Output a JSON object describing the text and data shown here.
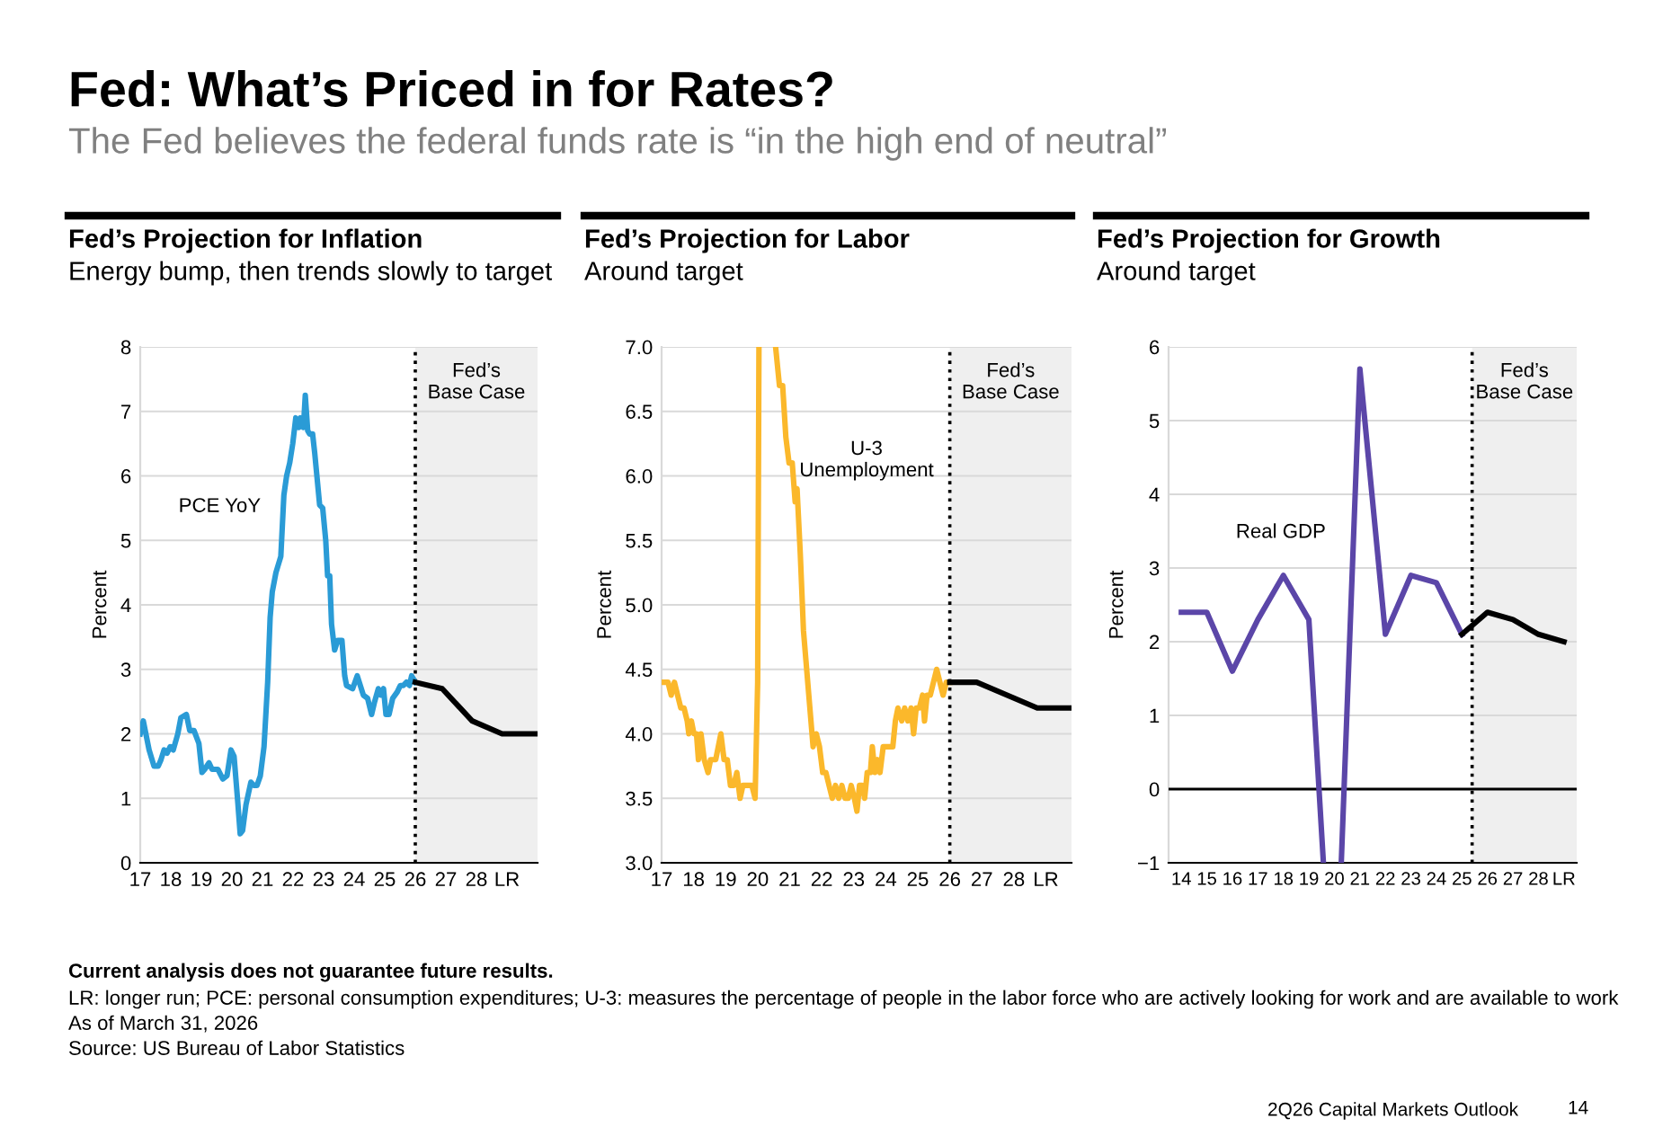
{
  "chart_data": [
    {
      "type": "other",
      "title": "Fed: What’s Priced in for Rates?",
      "subtitle": "The Fed believes the federal funds rate is “in the high end of neutral”",
      "annotations": [
        "Current analysis does not guarantee future results.",
        "LR: longer run; PCE: personal consumption expenditures; U-3: measures the percentage of people in the labor force who are actively looking for work and are available to work",
        "As of March 31, 2026",
        "Source: US Bureau of Labor Statistics",
        "2Q26 Capital Markets Outlook",
        "14"
      ]
    },
    {
      "type": "line",
      "title": "Fed’s Projection for Inflation",
      "subtitle": "Energy bump, then trends slowly to target",
      "ylabel": "Percent",
      "xlim": [
        2017,
        2030
      ],
      "ylim": [
        0,
        8
      ],
      "yticks": [
        0,
        1,
        2,
        3,
        4,
        5,
        6,
        7,
        8
      ],
      "xticks": [
        {
          "value": 2017,
          "label": "17"
        },
        {
          "value": 2018,
          "label": "18"
        },
        {
          "value": 2019,
          "label": "19"
        },
        {
          "value": 2020,
          "label": "20"
        },
        {
          "value": 2021,
          "label": "21"
        },
        {
          "value": 2022,
          "label": "22"
        },
        {
          "value": 2023,
          "label": "23"
        },
        {
          "value": 2024,
          "label": "24"
        },
        {
          "value": 2025,
          "label": "25"
        },
        {
          "value": 2026,
          "label": "26"
        },
        {
          "value": 2027,
          "label": "27"
        },
        {
          "value": 2028,
          "label": "28"
        },
        {
          "value": 2029,
          "label": "LR"
        }
      ],
      "grid": "y",
      "line_style": "solid",
      "marker": "none",
      "series": [
        {
          "name": "PCE YoY",
          "color": "#2a9bd6",
          "x": [
            2017.0,
            2017.1,
            2017.29,
            2017.45,
            2017.59,
            2017.68,
            2017.78,
            2017.88,
            2017.98,
            2018.08,
            2018.23,
            2018.33,
            2018.51,
            2018.62,
            2018.76,
            2018.92,
            2019.02,
            2019.11,
            2019.25,
            2019.35,
            2019.54,
            2019.7,
            2019.84,
            2019.97,
            2020.07,
            2020.19,
            2020.27,
            2020.35,
            2020.46,
            2020.62,
            2020.72,
            2020.82,
            2020.93,
            2021.05,
            2021.17,
            2021.25,
            2021.32,
            2021.44,
            2021.6,
            2021.7,
            2021.79,
            2021.89,
            2021.99,
            2022.09,
            2022.19,
            2022.24,
            2022.34,
            2022.4,
            2022.48,
            2022.54,
            2022.64,
            2022.71,
            2022.77,
            2022.87,
            2022.97,
            2023.07,
            2023.13,
            2023.2,
            2023.26,
            2023.36,
            2023.46,
            2023.6,
            2023.69,
            2023.75,
            2023.95,
            2024.1,
            2024.2,
            2024.3,
            2024.44,
            2024.57,
            2024.67,
            2024.79,
            2024.87,
            2024.96,
            2025.04,
            2025.14,
            2025.26,
            2025.41,
            2025.51,
            2025.61,
            2025.71,
            2025.81,
            2025.88,
            2026.0
          ],
          "values": [
            2.0,
            2.2,
            1.75,
            1.5,
            1.5,
            1.6,
            1.75,
            1.7,
            1.8,
            1.75,
            2.0,
            2.25,
            2.3,
            2.05,
            2.05,
            1.85,
            1.4,
            1.45,
            1.55,
            1.45,
            1.45,
            1.3,
            1.35,
            1.75,
            1.65,
            0.95,
            0.45,
            0.5,
            0.9,
            1.25,
            1.2,
            1.2,
            1.35,
            1.8,
            2.8,
            3.8,
            4.2,
            4.5,
            4.75,
            5.7,
            6.0,
            6.2,
            6.5,
            6.9,
            6.75,
            6.9,
            6.75,
            7.25,
            6.7,
            6.65,
            6.65,
            6.35,
            6.05,
            5.55,
            5.5,
            5.0,
            4.45,
            4.45,
            3.7,
            3.3,
            3.45,
            3.45,
            2.9,
            2.75,
            2.7,
            2.9,
            2.75,
            2.6,
            2.55,
            2.3,
            2.5,
            2.7,
            2.6,
            2.7,
            2.3,
            2.3,
            2.55,
            2.65,
            2.75,
            2.75,
            2.8,
            2.75,
            2.9,
            2.8
          ]
        },
        {
          "color": "#000000",
          "x": [
            2026.0,
            2026.88,
            2027.86,
            2028.84,
            2030.0
          ],
          "values": [
            2.8,
            2.7,
            2.2,
            2.0,
            2.0
          ]
        }
      ],
      "ref_lines": [
        {
          "axis": "x",
          "value": 2026,
          "color": "#000000",
          "line_style": "dotted"
        }
      ],
      "bands": [
        {
          "axis": "x",
          "from": 2026,
          "to": 2030,
          "label": "Fed’s\nBase Case",
          "color": "#efefef"
        }
      ]
    },
    {
      "type": "line",
      "title": "Fed’s Projection for Labor",
      "subtitle": "Around target",
      "ylabel": "Percent",
      "xlim": [
        2017,
        2029.8
      ],
      "ylim": [
        3.0,
        7.0
      ],
      "yticks": [
        {
          "value": 3.0,
          "label": "3.0"
        },
        {
          "value": 3.5,
          "label": "3.5"
        },
        {
          "value": 4.0,
          "label": "4.0"
        },
        {
          "value": 4.5,
          "label": "4.5"
        },
        {
          "value": 5.0,
          "label": "5.0"
        },
        {
          "value": 5.5,
          "label": "5.5"
        },
        {
          "value": 6.0,
          "label": "6.0"
        },
        {
          "value": 6.5,
          "label": "6.5"
        },
        {
          "value": 7.0,
          "label": "7.0"
        }
      ],
      "xticks": [
        {
          "value": 2017,
          "label": "17"
        },
        {
          "value": 2018,
          "label": "18"
        },
        {
          "value": 2019,
          "label": "19"
        },
        {
          "value": 2020,
          "label": "20"
        },
        {
          "value": 2021,
          "label": "21"
        },
        {
          "value": 2022,
          "label": "22"
        },
        {
          "value": 2023,
          "label": "23"
        },
        {
          "value": 2024,
          "label": "24"
        },
        {
          "value": 2025,
          "label": "25"
        },
        {
          "value": 2026,
          "label": "26"
        },
        {
          "value": 2027,
          "label": "27"
        },
        {
          "value": 2028,
          "label": "28"
        },
        {
          "value": 2029,
          "label": "LR"
        }
      ],
      "grid": "y",
      "line_style": "solid",
      "marker": "none",
      "series": [
        {
          "name": "U-3\nUnemployment",
          "color": "#fbb82b",
          "x": [
            2017.0,
            2017.2,
            2017.3,
            2017.4,
            2017.5,
            2017.6,
            2017.7,
            2017.8,
            2017.85,
            2017.93,
            2018.01,
            2018.09,
            2018.15,
            2018.23,
            2018.33,
            2018.45,
            2018.53,
            2018.69,
            2018.85,
            2018.95,
            2019.05,
            2019.15,
            2019.25,
            2019.35,
            2019.45,
            2019.54,
            2019.68,
            2019.82,
            2019.92,
            2020.0,
            2020.04,
            2020.3,
            2020.56,
            2020.68,
            2020.78,
            2020.88,
            2020.98,
            2021.08,
            2021.17,
            2021.23,
            2021.33,
            2021.43,
            2021.53,
            2021.63,
            2021.73,
            2021.83,
            2021.93,
            2022.03,
            2022.13,
            2022.23,
            2022.33,
            2022.43,
            2022.53,
            2022.63,
            2022.73,
            2022.83,
            2022.92,
            2023.02,
            2023.1,
            2023.18,
            2023.26,
            2023.34,
            2023.42,
            2023.52,
            2023.58,
            2023.66,
            2023.74,
            2023.82,
            2023.92,
            2024.06,
            2024.22,
            2024.3,
            2024.38,
            2024.5,
            2024.59,
            2024.69,
            2024.79,
            2024.87,
            2024.95,
            2025.05,
            2025.15,
            2025.21,
            2025.29,
            2025.39,
            2025.49,
            2025.59,
            2025.69,
            2025.79,
            2025.89,
            2026.0
          ],
          "values": [
            4.4,
            4.4,
            4.3,
            4.4,
            4.3,
            4.2,
            4.2,
            4.1,
            4.0,
            4.1,
            4.0,
            4.0,
            3.8,
            4.0,
            3.8,
            3.7,
            3.8,
            3.8,
            4.0,
            3.8,
            3.8,
            3.6,
            3.6,
            3.7,
            3.5,
            3.6,
            3.6,
            3.6,
            3.5,
            4.4,
            7.0,
            null,
            7.0,
            6.7,
            6.7,
            6.3,
            6.1,
            6.1,
            5.8,
            5.9,
            5.4,
            4.8,
            4.5,
            4.2,
            3.9,
            4.0,
            3.9,
            3.7,
            3.7,
            3.6,
            3.5,
            3.6,
            3.5,
            3.6,
            3.5,
            3.5,
            3.6,
            3.5,
            3.4,
            3.6,
            3.6,
            3.5,
            3.7,
            3.7,
            3.9,
            3.7,
            3.8,
            3.7,
            3.9,
            3.9,
            3.9,
            4.1,
            4.2,
            4.1,
            4.2,
            4.1,
            4.2,
            4.0,
            4.2,
            4.2,
            4.3,
            4.1,
            4.3,
            4.3,
            4.4,
            4.5,
            4.4,
            4.3,
            4.4,
            4.4
          ]
        },
        {
          "color": "#000000",
          "x": [
            2026.0,
            2026.84,
            2028.73,
            2029.8
          ],
          "values": [
            4.4,
            4.4,
            4.2,
            4.2
          ]
        }
      ],
      "ref_lines": [
        {
          "axis": "x",
          "value": 2026,
          "color": "#000000",
          "line_style": "dotted"
        }
      ],
      "bands": [
        {
          "axis": "x",
          "from": 2026,
          "to": 2029.8,
          "label": "Fed’s\nBase Case",
          "color": "#efefef"
        }
      ]
    },
    {
      "type": "line",
      "title": "Fed’s Projection for Growth",
      "subtitle": "Around target",
      "ylabel": "Percent",
      "xlim": [
        2013.5,
        2029.5
      ],
      "ylim": [
        -1,
        6
      ],
      "yticks": [
        {
          "value": -1,
          "label": "−1"
        },
        0,
        1,
        2,
        3,
        4,
        5,
        6
      ],
      "xticks": [
        {
          "value": 2014,
          "label": "14"
        },
        {
          "value": 2015,
          "label": "15"
        },
        {
          "value": 2016,
          "label": "16"
        },
        {
          "value": 2017,
          "label": "17"
        },
        {
          "value": 2018,
          "label": "18"
        },
        {
          "value": 2019,
          "label": "19"
        },
        {
          "value": 2020,
          "label": "20"
        },
        {
          "value": 2021,
          "label": "21"
        },
        {
          "value": 2022,
          "label": "22"
        },
        {
          "value": 2023,
          "label": "23"
        },
        {
          "value": 2024,
          "label": "24"
        },
        {
          "value": 2025,
          "label": "25"
        },
        {
          "value": 2026,
          "label": "26"
        },
        {
          "value": 2027,
          "label": "27"
        },
        {
          "value": 2028,
          "label": "28"
        },
        {
          "value": 2029,
          "label": "LR"
        }
      ],
      "grid": "y",
      "line_style": "solid",
      "marker": "none",
      "series": [
        {
          "name": "Real GDP",
          "color": "#5b46a8",
          "x": [
            2014,
            2015,
            2016,
            2017,
            2018,
            2019,
            2019.57,
            2019.9,
            2020.27,
            2021,
            2022,
            2023,
            2024,
            2025
          ],
          "values": [
            2.4,
            2.4,
            1.6,
            2.3,
            2.9,
            2.3,
            -1,
            null,
            -1,
            5.7,
            2.1,
            2.9,
            2.8,
            2.1
          ]
        },
        {
          "color": "#000000",
          "x": [
            2025,
            2026,
            2027,
            2028,
            2029
          ],
          "values": [
            2.1,
            2.4,
            2.3,
            2.1,
            2.0
          ]
        }
      ],
      "ref_lines": [
        {
          "axis": "x",
          "value": 2025.4,
          "color": "#000000",
          "line_style": "dotted"
        },
        {
          "axis": "y",
          "value": 0,
          "color": "#000000",
          "line_style": "solid"
        }
      ],
      "bands": [
        {
          "axis": "x",
          "from": 2025.4,
          "to": 2029.5,
          "label": "Fed’s\nBase Case",
          "color": "#efefef"
        }
      ]
    }
  ]
}
